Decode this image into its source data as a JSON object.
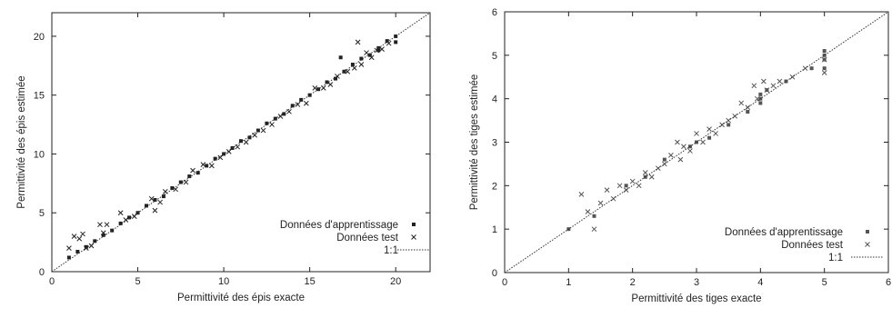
{
  "chart_data": [
    {
      "type": "scatter",
      "xlabel": "Permittivité des épis exacte",
      "ylabel": "Permittivité des épis estimée",
      "xlim": [
        0,
        22
      ],
      "ylim": [
        0,
        22
      ],
      "xticks": [
        "0",
        "5",
        "10",
        "15",
        "20"
      ],
      "yticks": [
        "0",
        "5",
        "10",
        "15",
        "20"
      ],
      "legend": {
        "placement": "bottom-right"
      },
      "series": [
        {
          "name": "Données d'apprentissage",
          "marker": "filled-square",
          "x": [
            1.0,
            1.5,
            2.0,
            2.5,
            3.0,
            3.5,
            4.0,
            4.5,
            5.0,
            5.5,
            6.0,
            6.5,
            7.0,
            7.5,
            8.0,
            8.5,
            9.0,
            9.5,
            10.0,
            10.5,
            11.0,
            11.5,
            12.0,
            12.5,
            13.0,
            13.5,
            14.0,
            14.5,
            15.0,
            15.5,
            16.0,
            16.5,
            17.0,
            17.5,
            18.0,
            18.5,
            19.0,
            19.5,
            20.0,
            20.0,
            19.0,
            16.8
          ],
          "y": [
            1.2,
            1.7,
            2.1,
            2.6,
            3.1,
            3.5,
            4.1,
            4.6,
            5.0,
            5.6,
            6.1,
            6.4,
            7.1,
            7.6,
            8.1,
            8.4,
            9.0,
            9.6,
            10.0,
            10.5,
            11.1,
            11.4,
            12.0,
            12.6,
            13.0,
            13.4,
            14.1,
            14.6,
            15.0,
            15.5,
            16.1,
            16.4,
            17.0,
            17.6,
            18.1,
            18.4,
            19.0,
            19.6,
            20.0,
            19.5,
            18.8,
            18.2
          ]
        },
        {
          "name": "Données test",
          "marker": "x-cross",
          "x": [
            1.0,
            1.3,
            1.6,
            1.8,
            2.0,
            2.3,
            2.8,
            3.0,
            3.2,
            4.0,
            4.3,
            4.8,
            5.8,
            6.0,
            6.3,
            6.6,
            7.2,
            7.8,
            8.2,
            8.8,
            9.3,
            9.8,
            10.3,
            10.8,
            11.3,
            11.8,
            12.3,
            12.8,
            13.3,
            13.8,
            14.3,
            14.8,
            15.3,
            15.8,
            16.2,
            16.6,
            17.2,
            17.6,
            18.0,
            18.3,
            18.6,
            18.9,
            19.2,
            19.6,
            17.8
          ],
          "y": [
            2.0,
            3.0,
            2.8,
            3.2,
            2.0,
            2.2,
            4.0,
            3.3,
            4.0,
            5.0,
            4.4,
            4.7,
            6.2,
            5.2,
            5.9,
            6.8,
            7.0,
            7.6,
            8.6,
            9.1,
            9.0,
            9.7,
            10.2,
            10.6,
            11.0,
            11.6,
            12.0,
            12.5,
            13.2,
            13.6,
            14.2,
            14.3,
            15.6,
            15.6,
            15.9,
            16.6,
            17.0,
            17.3,
            17.6,
            18.6,
            18.2,
            18.8,
            18.9,
            19.4,
            19.5
          ]
        },
        {
          "name": "1:1",
          "line": "dotted",
          "x": [
            0,
            22
          ],
          "y": [
            0,
            22
          ]
        }
      ]
    },
    {
      "type": "scatter",
      "xlabel": "Permittivité des tiges exacte",
      "ylabel": "Permittivité des tiges estimée",
      "xlim": [
        0,
        6
      ],
      "ylim": [
        0,
        6
      ],
      "xticks": [
        "0",
        "1",
        "2",
        "3",
        "4",
        "5",
        "6"
      ],
      "yticks": [
        "0",
        "1",
        "2",
        "3",
        "4",
        "5",
        "6"
      ],
      "legend": {
        "placement": "bottom-right"
      },
      "series": [
        {
          "name": "Données d'apprentissage",
          "marker": "filled-square",
          "x": [
            1.0,
            1.4,
            1.9,
            2.2,
            2.5,
            2.9,
            3.0,
            3.2,
            3.5,
            3.8,
            4.0,
            4.0,
            4.0,
            4.1,
            4.4,
            4.8,
            5.0,
            5.0,
            5.0,
            5.0
          ],
          "y": [
            1.0,
            1.3,
            2.0,
            2.2,
            2.6,
            2.9,
            3.0,
            3.1,
            3.4,
            3.7,
            4.0,
            4.1,
            3.9,
            4.2,
            4.4,
            4.7,
            5.0,
            4.9,
            5.1,
            4.7
          ],
          "color": "#555555"
        },
        {
          "name": "Données test",
          "marker": "x-cross",
          "x": [
            1.2,
            1.3,
            1.4,
            1.5,
            1.6,
            1.7,
            1.8,
            1.9,
            2.0,
            2.1,
            2.2,
            2.3,
            2.4,
            2.5,
            2.6,
            2.7,
            2.75,
            2.8,
            2.9,
            3.0,
            3.1,
            3.2,
            3.3,
            3.4,
            3.5,
            3.6,
            3.7,
            3.8,
            3.9,
            3.95,
            4.05,
            4.1,
            4.2,
            4.3,
            4.5,
            4.7,
            5.0,
            5.0
          ],
          "y": [
            1.8,
            1.4,
            1.0,
            1.6,
            1.9,
            1.7,
            2.0,
            1.9,
            2.1,
            2.0,
            2.3,
            2.2,
            2.4,
            2.5,
            2.7,
            3.0,
            2.6,
            2.9,
            2.8,
            3.2,
            3.0,
            3.3,
            3.2,
            3.4,
            3.5,
            3.6,
            3.9,
            3.8,
            4.3,
            4.0,
            4.4,
            4.2,
            4.3,
            4.4,
            4.5,
            4.7,
            4.6,
            4.9
          ],
          "color": "#555555"
        },
        {
          "name": "1:1",
          "line": "dotted",
          "x": [
            0,
            6
          ],
          "y": [
            0,
            6
          ]
        }
      ]
    }
  ]
}
